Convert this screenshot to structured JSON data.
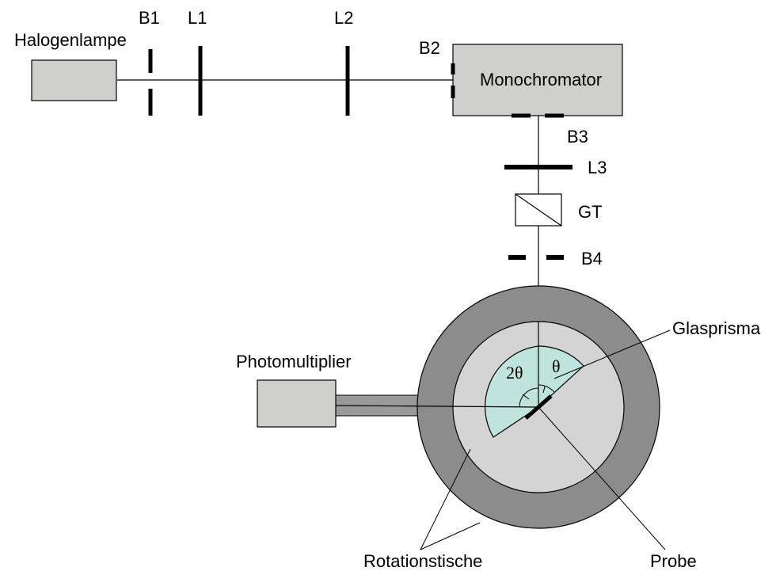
{
  "labels": {
    "halogenlampe": "Halogenlampe",
    "b1": "B1",
    "l1": "L1",
    "l2": "L2",
    "b2": "B2",
    "monochromator": "Monochromator",
    "b3": "B3",
    "l3": "L3",
    "gt": "GT",
    "b4": "B4",
    "glasprisma": "Glasprisma",
    "photomultiplier": "Photomultiplier",
    "two_theta": "2θ",
    "theta": "θ",
    "rotationstische": "Rotationstische",
    "probe": "Probe"
  },
  "colors": {
    "box_fill": "#cfcfcb",
    "outer_table": "#8c8c8c",
    "inner_table": "#d4d4d4",
    "prism_fill": "#bfe3dd",
    "arm_fill": "#9a9a9a",
    "line": "#000000"
  }
}
